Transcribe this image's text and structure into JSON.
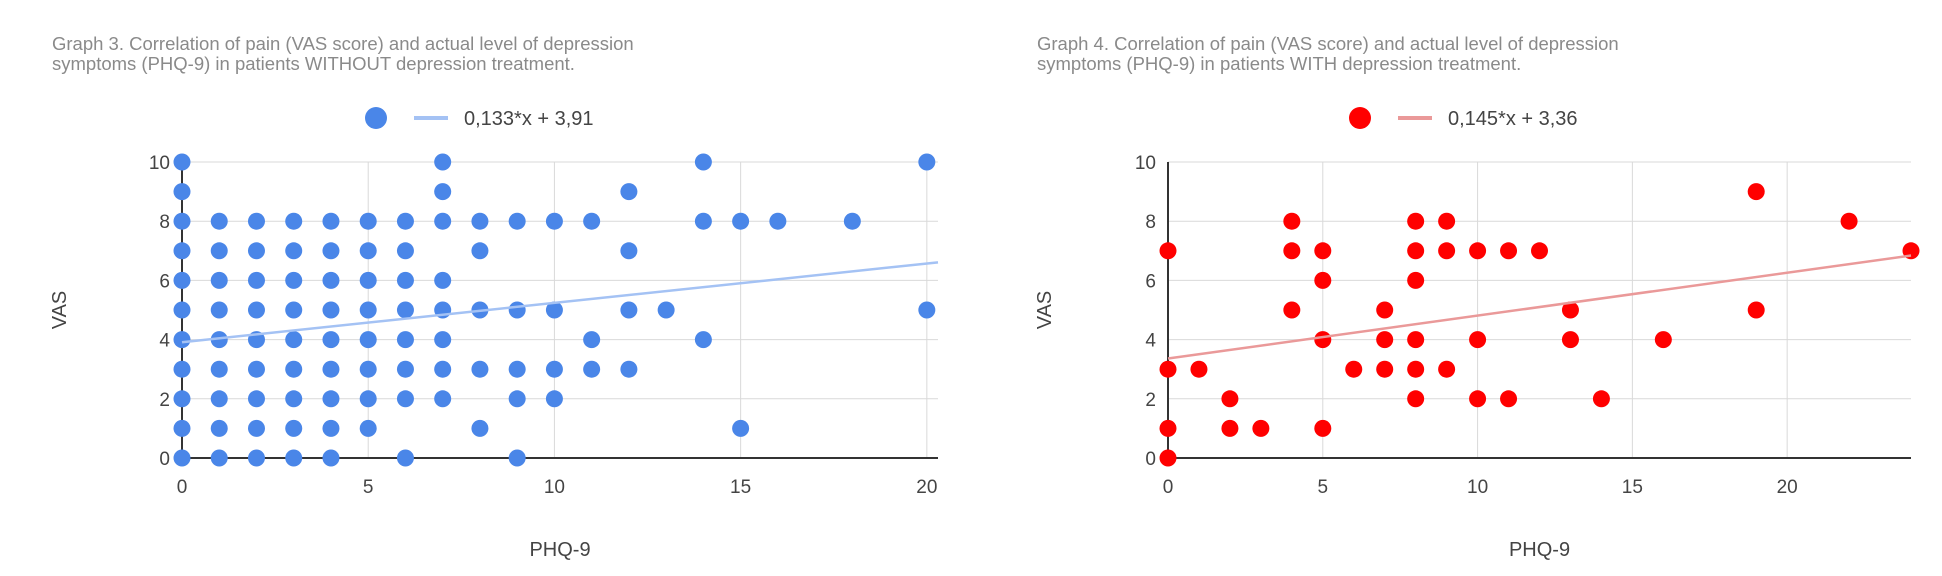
{
  "chart_data": [
    {
      "type": "scatter",
      "title_line1": "Graph 3. Correlation of pain (VAS score) and actual level of depression",
      "title_line2": "symptoms (PHQ-9) in patients WITHOUT depression treatment.",
      "xlabel": "PHQ-9",
      "ylabel": "VAS",
      "xlim": [
        0,
        20.3
      ],
      "ylim": [
        0,
        10
      ],
      "xticks": [
        0,
        5,
        10,
        15,
        20
      ],
      "yticks": [
        0,
        2,
        4,
        6,
        8,
        10
      ],
      "grid": true,
      "legend_position": "top",
      "point_color": "#4a86e8",
      "trend_color": "#a4c2f4",
      "trendline": {
        "label": "0,133*x + 3,91",
        "slope": 0.133,
        "intercept": 3.91
      },
      "points": [
        [
          0,
          0
        ],
        [
          0,
          1
        ],
        [
          0,
          2
        ],
        [
          0,
          3
        ],
        [
          0,
          4
        ],
        [
          0,
          5
        ],
        [
          0,
          6
        ],
        [
          0,
          7
        ],
        [
          0,
          8
        ],
        [
          0,
          9
        ],
        [
          0,
          10
        ],
        [
          1,
          0
        ],
        [
          1,
          1
        ],
        [
          1,
          2
        ],
        [
          1,
          3
        ],
        [
          1,
          4
        ],
        [
          1,
          5
        ],
        [
          1,
          6
        ],
        [
          1,
          7
        ],
        [
          1,
          8
        ],
        [
          2,
          0
        ],
        [
          2,
          1
        ],
        [
          2,
          2
        ],
        [
          2,
          3
        ],
        [
          2,
          4
        ],
        [
          2,
          5
        ],
        [
          2,
          6
        ],
        [
          2,
          7
        ],
        [
          2,
          8
        ],
        [
          3,
          0
        ],
        [
          3,
          1
        ],
        [
          3,
          2
        ],
        [
          3,
          3
        ],
        [
          3,
          4
        ],
        [
          3,
          5
        ],
        [
          3,
          6
        ],
        [
          3,
          7
        ],
        [
          3,
          8
        ],
        [
          4,
          0
        ],
        [
          4,
          1
        ],
        [
          4,
          2
        ],
        [
          4,
          3
        ],
        [
          4,
          4
        ],
        [
          4,
          5
        ],
        [
          4,
          6
        ],
        [
          4,
          7
        ],
        [
          4,
          8
        ],
        [
          5,
          1
        ],
        [
          5,
          2
        ],
        [
          5,
          3
        ],
        [
          5,
          4
        ],
        [
          5,
          5
        ],
        [
          5,
          6
        ],
        [
          5,
          7
        ],
        [
          5,
          8
        ],
        [
          6,
          0
        ],
        [
          6,
          2
        ],
        [
          6,
          3
        ],
        [
          6,
          4
        ],
        [
          6,
          5
        ],
        [
          6,
          6
        ],
        [
          6,
          7
        ],
        [
          6,
          8
        ],
        [
          7,
          2
        ],
        [
          7,
          3
        ],
        [
          7,
          4
        ],
        [
          7,
          5
        ],
        [
          7,
          6
        ],
        [
          7,
          8
        ],
        [
          7,
          9
        ],
        [
          7,
          10
        ],
        [
          8,
          1
        ],
        [
          8,
          3
        ],
        [
          8,
          5
        ],
        [
          8,
          7
        ],
        [
          8,
          8
        ],
        [
          9,
          0
        ],
        [
          9,
          2
        ],
        [
          9,
          3
        ],
        [
          9,
          5
        ],
        [
          9,
          8
        ],
        [
          10,
          2
        ],
        [
          10,
          3
        ],
        [
          10,
          5
        ],
        [
          10,
          8
        ],
        [
          11,
          3
        ],
        [
          11,
          4
        ],
        [
          11,
          8
        ],
        [
          12,
          3
        ],
        [
          12,
          5
        ],
        [
          12,
          7
        ],
        [
          12,
          9
        ],
        [
          13,
          5
        ],
        [
          14,
          4
        ],
        [
          14,
          8
        ],
        [
          14,
          10
        ],
        [
          15,
          1
        ],
        [
          15,
          8
        ],
        [
          16,
          8
        ],
        [
          18,
          8
        ],
        [
          20,
          5
        ],
        [
          20,
          10
        ]
      ]
    },
    {
      "type": "scatter",
      "title_line1": "Graph 4. Correlation of pain (VAS score) and actual level of depression",
      "title_line2": "symptoms (PHQ-9) in patients WITH depression treatment.",
      "xlabel": "PHQ-9",
      "ylabel": "VAS",
      "xlim": [
        0,
        24
      ],
      "ylim": [
        0,
        10
      ],
      "xticks": [
        0,
        5,
        10,
        15,
        20
      ],
      "yticks": [
        0,
        2,
        4,
        6,
        8,
        10
      ],
      "grid": true,
      "legend_position": "top",
      "point_color": "#ff0000",
      "trend_color": "#ea9999",
      "trendline": {
        "label": "0,145*x + 3,36",
        "slope": 0.145,
        "intercept": 3.36
      },
      "points": [
        [
          0,
          0
        ],
        [
          0,
          1
        ],
        [
          0,
          3
        ],
        [
          0,
          7
        ],
        [
          1,
          3
        ],
        [
          2,
          1
        ],
        [
          2,
          2
        ],
        [
          3,
          1
        ],
        [
          4,
          5
        ],
        [
          4,
          7
        ],
        [
          4,
          8
        ],
        [
          5,
          1
        ],
        [
          5,
          4
        ],
        [
          5,
          6
        ],
        [
          5,
          7
        ],
        [
          6,
          3
        ],
        [
          7,
          3
        ],
        [
          7,
          4
        ],
        [
          7,
          5
        ],
        [
          8,
          2
        ],
        [
          8,
          3
        ],
        [
          8,
          4
        ],
        [
          8,
          6
        ],
        [
          8,
          7
        ],
        [
          8,
          8
        ],
        [
          9,
          3
        ],
        [
          9,
          7
        ],
        [
          9,
          8
        ],
        [
          10,
          2
        ],
        [
          10,
          4
        ],
        [
          10,
          7
        ],
        [
          11,
          2
        ],
        [
          11,
          7
        ],
        [
          12,
          7
        ],
        [
          13,
          4
        ],
        [
          13,
          5
        ],
        [
          14,
          2
        ],
        [
          16,
          4
        ],
        [
          19,
          5
        ],
        [
          19,
          9
        ],
        [
          22,
          8
        ],
        [
          24,
          7
        ]
      ]
    }
  ]
}
